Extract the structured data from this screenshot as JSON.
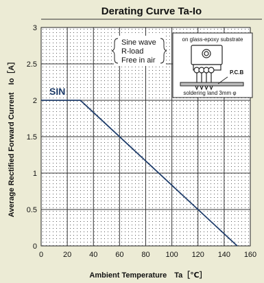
{
  "chart_data": {
    "type": "line",
    "title": "Derating Curve Ta-Io",
    "xlabel": "Ambient Temperature　Ta［℃］",
    "ylabel": "Average Rectified Forward Current　Io［A］",
    "xlim": [
      0,
      160
    ],
    "ylim": [
      0,
      3
    ],
    "x_ticks": [
      "0",
      "20",
      "40",
      "60",
      "80",
      "100",
      "120",
      "140",
      "160"
    ],
    "y_ticks": [
      "0",
      "0.5",
      "1",
      "1.5",
      "2",
      "2.5",
      "3"
    ],
    "grid": true,
    "series": [
      {
        "name": "SIN",
        "color": "#1f3d6b",
        "x": [
          0,
          30,
          150
        ],
        "y": [
          2,
          2,
          0
        ]
      }
    ],
    "annotations": {
      "conditions": [
        "Sine wave",
        "R-load",
        "Free in air"
      ],
      "inset": {
        "heading": "on glass-epoxy substrate",
        "pcb_label": "P.C.B",
        "footer": "soldering land 3mm φ"
      }
    }
  }
}
